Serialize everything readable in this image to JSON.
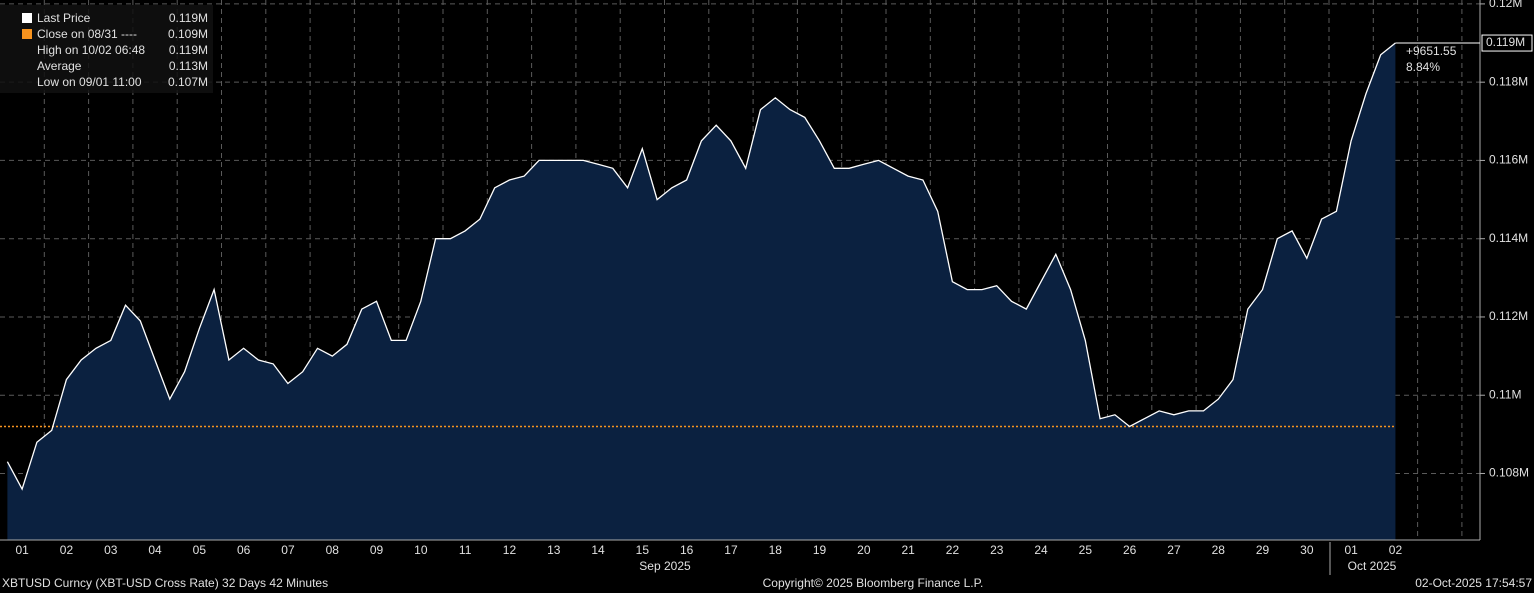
{
  "chart_data": {
    "type": "area",
    "categories": [
      null,
      "01",
      null,
      null,
      "02",
      null,
      null,
      "03",
      null,
      null,
      "04",
      null,
      null,
      "05",
      null,
      null,
      "06",
      null,
      null,
      "07",
      null,
      null,
      "08",
      null,
      null,
      "09",
      null,
      null,
      "10",
      null,
      null,
      "11",
      null,
      null,
      "12",
      null,
      null,
      "13",
      null,
      null,
      "14",
      null,
      null,
      "15",
      null,
      null,
      "16",
      null,
      null,
      "17",
      null,
      null,
      "18",
      null,
      null,
      "19",
      null,
      null,
      "20",
      null,
      null,
      "21",
      null,
      null,
      "22",
      null,
      null,
      "23",
      null,
      null,
      "24",
      null,
      null,
      "25",
      null,
      null,
      "26",
      null,
      null,
      "27",
      null,
      null,
      "28",
      null,
      null,
      "29",
      null,
      null,
      "30",
      null,
      null,
      "01",
      null,
      null,
      "02"
    ],
    "series": [
      {
        "name": "Last Price",
        "color": "#ffffff",
        "fill": "#0b2140",
        "values": [
          0.1083,
          0.1076,
          0.1088,
          0.1091,
          0.1104,
          0.1109,
          0.1112,
          0.1114,
          0.1123,
          0.1119,
          0.1109,
          0.1099,
          0.1106,
          0.1117,
          0.1127,
          0.1109,
          0.1112,
          0.1109,
          0.1108,
          0.1103,
          0.1106,
          0.1112,
          0.111,
          0.1113,
          0.1122,
          0.1124,
          0.1114,
          0.1114,
          0.1124,
          0.114,
          0.114,
          0.1142,
          0.1145,
          0.1153,
          0.1155,
          0.1156,
          0.116,
          0.116,
          0.116,
          0.116,
          0.1159,
          0.1158,
          0.1153,
          0.1163,
          0.115,
          0.1153,
          0.1155,
          0.1165,
          0.1169,
          0.1165,
          0.1158,
          0.1173,
          0.1176,
          0.1173,
          0.1171,
          0.1165,
          0.1158,
          0.1158,
          0.1159,
          0.116,
          0.1158,
          0.1156,
          0.1155,
          0.1147,
          0.1129,
          0.1127,
          0.1127,
          0.1128,
          0.1124,
          0.1122,
          0.1129,
          0.1136,
          0.1127,
          0.1114,
          0.1094,
          0.1095,
          0.1092,
          0.1094,
          0.1096,
          0.1095,
          0.1096,
          0.1096,
          0.1099,
          0.1104,
          0.1122,
          0.1127,
          0.114,
          0.1142,
          0.1135,
          0.1145,
          0.1147,
          0.1165,
          0.1177,
          0.1187,
          0.119
        ]
      }
    ],
    "close_line": {
      "value": 0.1092,
      "color": "#f7931e"
    },
    "ylim": [
      0.1063,
      0.1201
    ],
    "yticks": [
      {
        "value": 0.108,
        "label": "0.108M"
      },
      {
        "value": 0.11,
        "label": "0.11M"
      },
      {
        "value": 0.112,
        "label": "0.112M"
      },
      {
        "value": 0.114,
        "label": "0.114M"
      },
      {
        "value": 0.116,
        "label": "0.116M"
      },
      {
        "value": 0.118,
        "label": "0.118M"
      },
      {
        "value": 0.12,
        "label": "0.12M"
      }
    ],
    "grid": true,
    "legend": [
      {
        "name": "Last Price",
        "value": "0.119M"
      },
      {
        "name": "Close on 08/31 ----",
        "value": "0.109M"
      },
      {
        "name": "High on 10/02 06:48",
        "value": "0.119M"
      },
      {
        "name": "Average",
        "value": "0.113M"
      },
      {
        "name": "Low on 09/01 11:00",
        "value": "0.107M"
      }
    ],
    "last_label": "0.119M",
    "change": "+9651.55",
    "change_pct": "8.84%",
    "months": [
      "Sep 2025",
      "Oct 2025"
    ],
    "footer": {
      "left": "XBTUSD Curncy (XBT-USD Cross Rate) 32 Days 42 Minutes",
      "center": "Copyright© 2025 Bloomberg Finance L.P.",
      "right": "02-Oct-2025 17:54:57"
    }
  }
}
